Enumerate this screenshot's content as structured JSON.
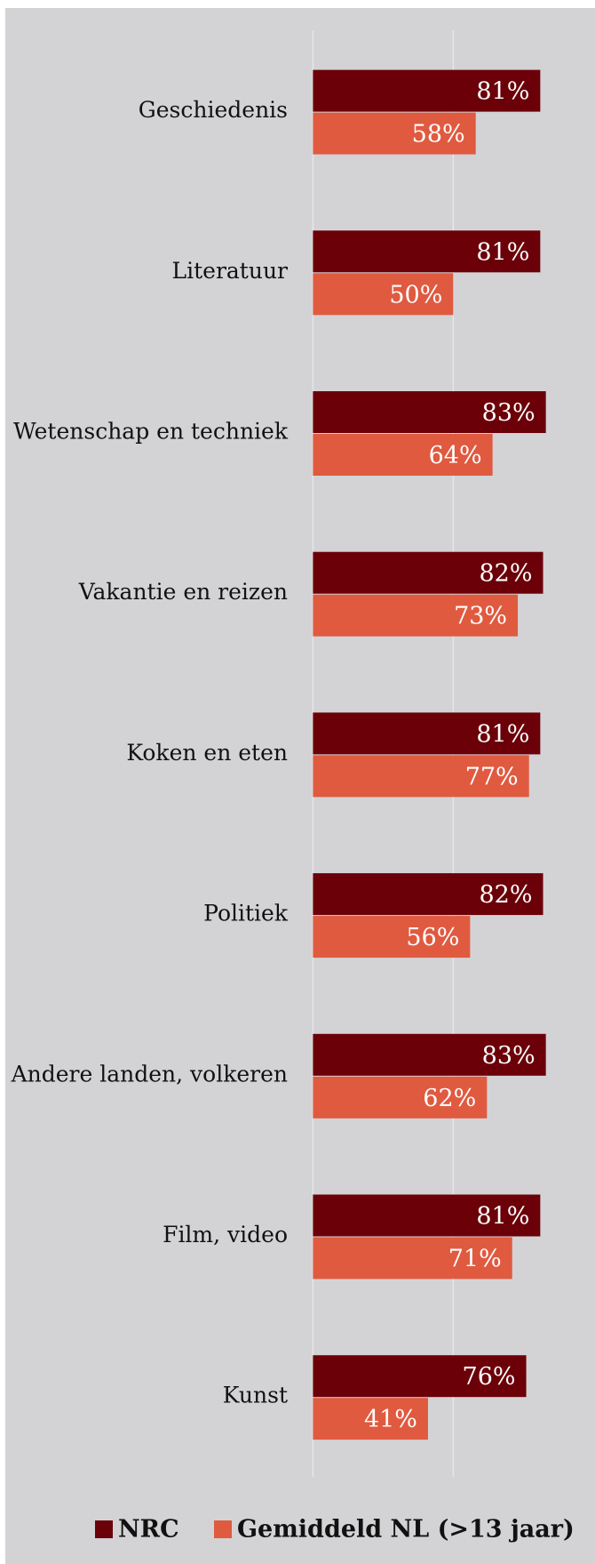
{
  "chart_data": {
    "type": "bar",
    "orientation": "horizontal",
    "categories": [
      "Geschiedenis",
      "Literatuur",
      "Wetenschap en techniek",
      "Vakantie en reizen",
      "Koken en eten",
      "Politiek",
      "Andere landen, volkeren",
      "Film, video",
      "Kunst"
    ],
    "series": [
      {
        "name": "NRC",
        "color": "#6b0009",
        "values": [
          81,
          81,
          83,
          82,
          81,
          82,
          83,
          81,
          76
        ],
        "value_labels": [
          "81%",
          "81%",
          "83%",
          "82%",
          "81%",
          "82%",
          "83%",
          "81%",
          "76%"
        ]
      },
      {
        "name": "Gemiddeld NL (>13 jaar)",
        "color": "#e05a40",
        "values": [
          58,
          50,
          64,
          73,
          77,
          56,
          62,
          71,
          41
        ],
        "value_labels": [
          "58%",
          "50%",
          "64%",
          "73%",
          "77%",
          "56%",
          "62%",
          "71%",
          "41%"
        ]
      }
    ],
    "xlim": [
      0,
      100
    ],
    "xticks": [
      0,
      50
    ],
    "grid": true,
    "legend": "bottom"
  }
}
